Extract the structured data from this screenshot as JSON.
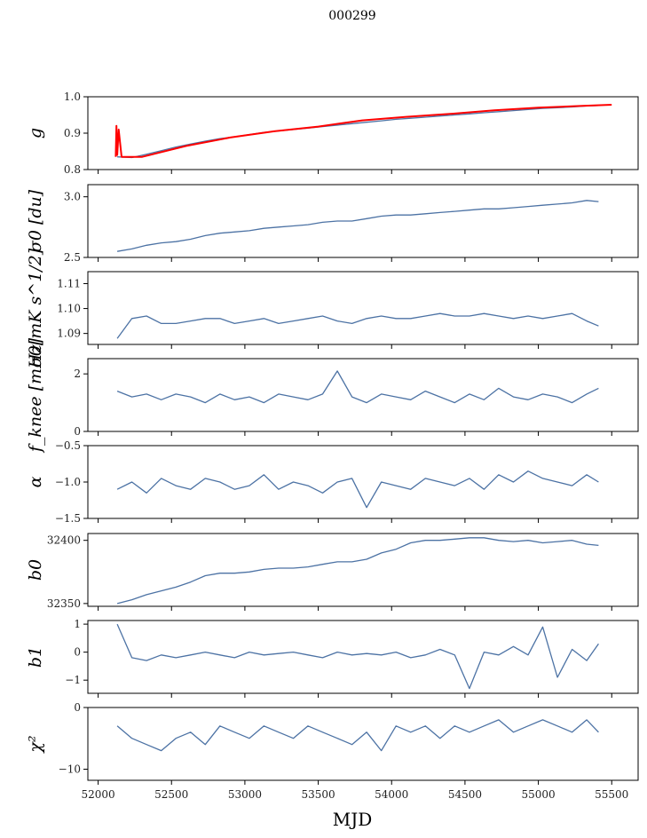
{
  "chart_data": {
    "type": "line",
    "title": "000299",
    "xlabel": "MJD",
    "xlim": [
      51930,
      55680
    ],
    "xticks": [
      52000,
      52500,
      53000,
      53500,
      54000,
      54500,
      55000,
      55500
    ],
    "xtick_labels": [
      "52000",
      "52500",
      "53000",
      "53500",
      "54000",
      "54500",
      "55000",
      "55500"
    ],
    "x": [
      52130,
      52230,
      52330,
      52430,
      52530,
      52630,
      52730,
      52830,
      52930,
      53030,
      53130,
      53230,
      53330,
      53430,
      53530,
      53630,
      53730,
      53830,
      53930,
      54030,
      54130,
      54230,
      54330,
      54430,
      54530,
      54630,
      54730,
      54830,
      54930,
      55030,
      55130,
      55230,
      55330,
      55410
    ],
    "panels": [
      {
        "ylabel": "g",
        "ylim": [
          0.8,
          1.0
        ],
        "yticks": [
          0.8,
          0.9,
          1.0
        ],
        "ytick_labels": [
          "0.8",
          "0.9",
          "1.0"
        ],
        "series": [
          {
            "name": "g",
            "color": "#4c72a4",
            "values": [
              0.835,
              0.833,
              0.842,
              0.852,
              0.862,
              0.87,
              0.878,
              0.885,
              0.89,
              0.896,
              0.902,
              0.906,
              0.91,
              0.914,
              0.918,
              0.922,
              0.926,
              0.93,
              0.934,
              0.938,
              0.941,
              0.944,
              0.947,
              0.95,
              0.953,
              0.956,
              0.959,
              0.962,
              0.965,
              0.968,
              0.97,
              0.972,
              0.975,
              0.976
            ]
          },
          {
            "name": "g model",
            "color": "#ff0000",
            "x": [
              52120,
              52125,
              52130,
              52140,
              52160,
              52300,
              52600,
              52900,
              53200,
              53500,
              53800,
              54100,
              54400,
              54700,
              55000,
              55300,
              55500
            ],
            "values": [
              0.835,
              0.92,
              0.84,
              0.91,
              0.835,
              0.835,
              0.865,
              0.888,
              0.905,
              0.918,
              0.935,
              0.945,
              0.953,
              0.963,
              0.97,
              0.975,
              0.978
            ]
          }
        ]
      },
      {
        "ylabel": "σ0 [du]",
        "ylim": [
          2.5,
          3.1
        ],
        "yticks": [
          2.5,
          3.0
        ],
        "ytick_labels": [
          "2.5",
          "3.0"
        ],
        "series": [
          {
            "name": "sigma0_du",
            "color": "#4c72a4",
            "values": [
              2.55,
              2.57,
              2.6,
              2.62,
              2.63,
              2.65,
              2.68,
              2.7,
              2.71,
              2.72,
              2.74,
              2.75,
              2.76,
              2.77,
              2.79,
              2.8,
              2.8,
              2.82,
              2.84,
              2.85,
              2.85,
              2.86,
              2.87,
              2.88,
              2.89,
              2.9,
              2.9,
              2.91,
              2.92,
              2.93,
              2.94,
              2.95,
              2.97,
              2.96
            ]
          }
        ]
      },
      {
        "ylabel": "σ0[mK s^1/2]",
        "ylim": [
          1.0856,
          1.1148
        ],
        "yticks": [
          1.09,
          1.1,
          1.11
        ],
        "ytick_labels": [
          "1.09",
          "1.10",
          "1.11"
        ],
        "series": [
          {
            "name": "sigma0_mK",
            "color": "#4c72a4",
            "values": [
              1.088,
              1.096,
              1.097,
              1.094,
              1.094,
              1.095,
              1.096,
              1.096,
              1.094,
              1.095,
              1.096,
              1.094,
              1.095,
              1.096,
              1.097,
              1.095,
              1.094,
              1.096,
              1.097,
              1.096,
              1.096,
              1.097,
              1.098,
              1.097,
              1.097,
              1.098,
              1.097,
              1.096,
              1.097,
              1.096,
              1.097,
              1.098,
              1.095,
              1.093
            ]
          }
        ]
      },
      {
        "ylabel": "f_knee [mHz]",
        "ylim": [
          0,
          2.53
        ],
        "yticks": [
          0,
          2
        ],
        "ytick_labels": [
          "0",
          "2"
        ],
        "series": [
          {
            "name": "fknee",
            "color": "#4c72a4",
            "values": [
              1.4,
              1.2,
              1.3,
              1.1,
              1.3,
              1.2,
              1.0,
              1.3,
              1.1,
              1.2,
              1.0,
              1.3,
              1.2,
              1.1,
              1.3,
              2.1,
              1.2,
              1.0,
              1.3,
              1.2,
              1.1,
              1.4,
              1.2,
              1.0,
              1.3,
              1.1,
              1.5,
              1.2,
              1.1,
              1.3,
              1.2,
              1.0,
              1.3,
              1.5
            ]
          }
        ]
      },
      {
        "ylabel": "α",
        "ylim": [
          -1.5,
          -0.5
        ],
        "yticks": [
          -1.5,
          -1.0,
          -0.5
        ],
        "ytick_labels": [
          "−1.5",
          "−1.0",
          "−0.5"
        ],
        "series": [
          {
            "name": "alpha",
            "color": "#4c72a4",
            "values": [
              -1.1,
              -1.0,
              -1.15,
              -0.95,
              -1.05,
              -1.1,
              -0.95,
              -1.0,
              -1.1,
              -1.05,
              -0.9,
              -1.1,
              -1.0,
              -1.05,
              -1.15,
              -1.0,
              -0.95,
              -1.35,
              -1.0,
              -1.05,
              -1.1,
              -0.95,
              -1.0,
              -1.05,
              -0.95,
              -1.1,
              -0.9,
              -1.0,
              -0.85,
              -0.95,
              -1.0,
              -1.05,
              -0.9,
              -1.0
            ]
          }
        ]
      },
      {
        "ylabel": "b0",
        "ylim": [
          32347.8,
          32405.4
        ],
        "yticks": [
          32350,
          32400
        ],
        "ytick_labels": [
          "32350",
          "32400"
        ],
        "series": [
          {
            "name": "b0",
            "color": "#4c72a4",
            "values": [
              32350,
              32353,
              32357,
              32360,
              32363,
              32367,
              32372,
              32374,
              32374,
              32375,
              32377,
              32378,
              32378,
              32379,
              32381,
              32383,
              32383,
              32385,
              32390,
              32393,
              32398,
              32400,
              32400,
              32401,
              32402,
              32402,
              32400,
              32399,
              32400,
              32398,
              32399,
              32400,
              32397,
              32396
            ]
          }
        ]
      },
      {
        "ylabel": "b1",
        "ylim": [
          -1.47,
          1.13
        ],
        "yticks": [
          -1,
          0,
          1
        ],
        "ytick_labels": [
          "−1",
          "0",
          "1"
        ],
        "series": [
          {
            "name": "b1",
            "color": "#4c72a4",
            "values": [
              1.0,
              -0.2,
              -0.3,
              -0.1,
              -0.2,
              -0.1,
              0.0,
              -0.1,
              -0.2,
              0.0,
              -0.1,
              -0.05,
              0.0,
              -0.1,
              -0.2,
              0.0,
              -0.1,
              -0.05,
              -0.1,
              0.0,
              -0.2,
              -0.1,
              0.1,
              -0.1,
              -1.3,
              0.0,
              -0.1,
              0.2,
              -0.1,
              0.9,
              -0.9,
              0.1,
              -0.3,
              0.3
            ]
          }
        ]
      },
      {
        "ylabel": "χ²",
        "ylim": [
          -11.8,
          0
        ],
        "yticks": [
          -10,
          0
        ],
        "ytick_labels": [
          "−10",
          "0"
        ],
        "series": [
          {
            "name": "chi2",
            "color": "#4c72a4",
            "values": [
              -3,
              -5,
              -6,
              -7,
              -5,
              -4,
              -6,
              -3,
              -4,
              -5,
              -3,
              -4,
              -5,
              -3,
              -4,
              -5,
              -6,
              -4,
              -7,
              -3,
              -4,
              -3,
              -5,
              -3,
              -4,
              -3,
              -2,
              -4,
              -3,
              -2,
              -3,
              -4,
              -2,
              -4
            ]
          }
        ]
      }
    ]
  }
}
